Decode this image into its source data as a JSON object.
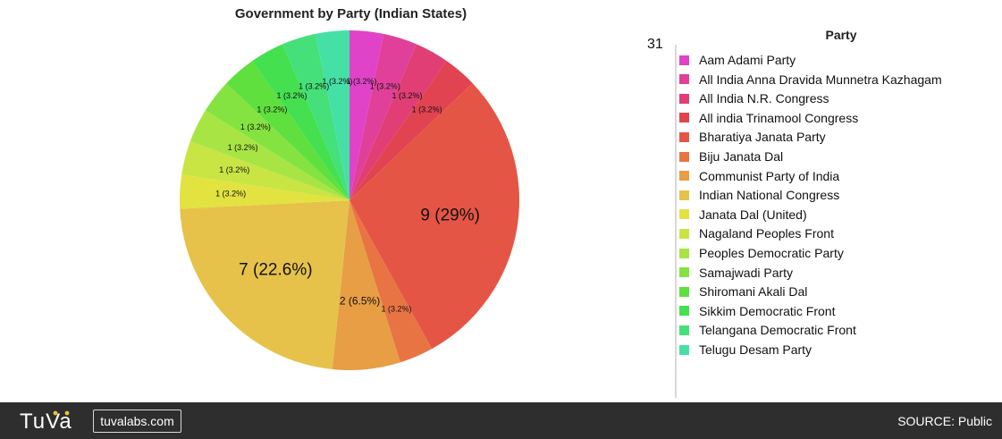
{
  "chart_data": {
    "type": "pie",
    "title": "Government by Party (Indian States)",
    "legend_title": "Party",
    "legend_position": "right",
    "total_label": "31",
    "slices": [
      {
        "name": "Aam Adami Party",
        "value": 1,
        "label": "1 (3.2%)",
        "color": "#e043c8"
      },
      {
        "name": "All India Anna Dravida Munnetra Kazhagam",
        "value": 1,
        "label": "1 (3.2%)",
        "color": "#e0409a"
      },
      {
        "name": "All India N.R. Congress",
        "value": 1,
        "label": "1 (3.2%)",
        "color": "#e03e74"
      },
      {
        "name": "All india Trinamool Congress",
        "value": 1,
        "label": "1 (3.2%)",
        "color": "#e24350"
      },
      {
        "name": "Bharatiya Janata Party",
        "value": 9,
        "label": "9 (29%)",
        "color": "#e55545"
      },
      {
        "name": "Biju Janata Dal",
        "value": 1,
        "label": "1 (3.2%)",
        "color": "#e87443"
      },
      {
        "name": "Communist Party of India",
        "value": 2,
        "label": "2 (6.5%)",
        "color": "#e79e45"
      },
      {
        "name": "Indian National Congress",
        "value": 7,
        "label": "7 (22.6%)",
        "color": "#e6c24a"
      },
      {
        "name": "Janata Dal (United)",
        "value": 1,
        "label": "1 (3.2%)",
        "color": "#e2e241"
      },
      {
        "name": "Nagaland Peoples Front",
        "value": 1,
        "label": "1 (3.2%)",
        "color": "#c8e544"
      },
      {
        "name": "Peoples Democratic Party",
        "value": 1,
        "label": "1 (3.2%)",
        "color": "#a8e544"
      },
      {
        "name": "Samajwadi Party",
        "value": 1,
        "label": "1 (3.2%)",
        "color": "#84e340"
      },
      {
        "name": "Shiromani Akali Dal",
        "value": 1,
        "label": "1 (3.2%)",
        "color": "#5fe03e"
      },
      {
        "name": "Sikkim Democratic Front",
        "value": 1,
        "label": "1 (3.2%)",
        "color": "#44e050"
      },
      {
        "name": "Telangana Democratic Front",
        "value": 1,
        "label": "1 (3.2%)",
        "color": "#45e07a"
      },
      {
        "name": "Telugu Desam Party",
        "value": 1,
        "label": "1 (3.2%)",
        "color": "#45e0a6"
      }
    ]
  },
  "footer": {
    "logo_text": "TuVa",
    "site_label": "tuvalabs.com",
    "source_label": "SOURCE: Public",
    "background": "#2e2e2e",
    "logo_accent": "#f2c12e"
  }
}
